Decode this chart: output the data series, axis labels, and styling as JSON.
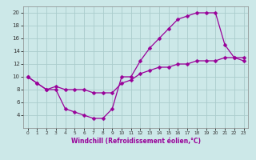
{
  "xlabel": "Windchill (Refroidissement éolien,°C)",
  "background_color": "#cce8e8",
  "grid_color": "#aacccc",
  "line_color": "#990099",
  "line1_x": [
    0,
    1,
    2,
    3,
    4,
    5,
    6,
    7,
    8,
    9,
    10,
    11,
    12,
    13,
    14,
    15,
    16,
    17,
    18,
    19,
    20,
    21,
    22,
    23
  ],
  "line1_y": [
    10,
    9,
    8,
    8,
    5,
    4.5,
    4,
    3.5,
    3.5,
    5,
    10,
    10,
    12.5,
    14.5,
    16,
    17.5,
    19,
    19.5,
    20,
    20,
    20,
    15,
    13,
    12.5
  ],
  "line2_x": [
    0,
    1,
    2,
    3,
    4,
    5,
    6,
    7,
    8,
    9,
    10,
    11,
    12,
    13,
    14,
    15,
    16,
    17,
    18,
    19,
    20,
    21,
    22,
    23
  ],
  "line2_y": [
    10,
    9,
    8,
    8.5,
    8,
    8,
    8,
    7.5,
    7.5,
    7.5,
    9,
    9.5,
    10.5,
    11,
    11.5,
    11.5,
    12,
    12,
    12.5,
    12.5,
    12.5,
    13,
    13,
    13
  ],
  "ylim": [
    2,
    21
  ],
  "xlim": [
    -0.5,
    23.5
  ],
  "yticks": [
    4,
    6,
    8,
    10,
    12,
    14,
    16,
    18,
    20
  ],
  "xticks": [
    0,
    1,
    2,
    3,
    4,
    5,
    6,
    7,
    8,
    9,
    10,
    11,
    12,
    13,
    14,
    15,
    16,
    17,
    18,
    19,
    20,
    21,
    22,
    23
  ],
  "marker_size": 2.5,
  "line_width": 0.9,
  "tick_fontsize_x": 4.2,
  "tick_fontsize_y": 5.0,
  "xlabel_fontsize": 5.5
}
